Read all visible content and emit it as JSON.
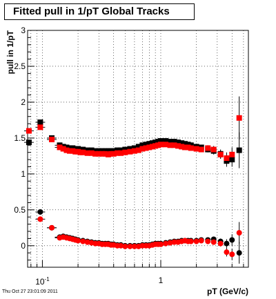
{
  "header": {
    "title": "Fitted pull in 1/pT  Global Tracks"
  },
  "footer": {
    "timestamp": "Thu Oct 27 23:01:09 2011"
  },
  "chart_data": {
    "type": "scatter",
    "title": "Fitted pull in 1/pT  Global Tracks",
    "xlabel": "pT (GeV/c)",
    "ylabel": "pull in 1/pT",
    "xscale": "log",
    "xlim": [
      0.075,
      5.5
    ],
    "ylim": [
      -0.3,
      3.0
    ],
    "x_tick_labels": [
      "10^-1",
      "1"
    ],
    "y_tick_labels": [
      "0",
      "0.5",
      "1",
      "1.5",
      "2",
      "2.5",
      "3"
    ],
    "grid": true,
    "colors": {
      "black_series": "#000000",
      "red_series": "#ff0000"
    },
    "series": [
      {
        "values": [
          [
            0.077,
            1.44
          ],
          [
            0.096,
            1.72
          ],
          [
            0.12,
            1.5
          ],
          [
            0.14,
            1.4
          ],
          [
            0.15,
            1.38
          ],
          [
            0.16,
            1.37
          ],
          [
            0.17,
            1.36
          ],
          [
            0.18,
            1.36
          ],
          [
            0.19,
            1.35
          ],
          [
            0.2,
            1.35
          ],
          [
            0.21,
            1.34
          ],
          [
            0.22,
            1.34
          ],
          [
            0.24,
            1.33
          ],
          [
            0.26,
            1.33
          ],
          [
            0.28,
            1.32
          ],
          [
            0.3,
            1.32
          ],
          [
            0.32,
            1.32
          ],
          [
            0.34,
            1.32
          ],
          [
            0.36,
            1.32
          ],
          [
            0.38,
            1.32
          ],
          [
            0.4,
            1.32
          ],
          [
            0.43,
            1.33
          ],
          [
            0.46,
            1.33
          ],
          [
            0.5,
            1.34
          ],
          [
            0.55,
            1.35
          ],
          [
            0.6,
            1.36
          ],
          [
            0.65,
            1.38
          ],
          [
            0.7,
            1.4
          ],
          [
            0.75,
            1.41
          ],
          [
            0.8,
            1.42
          ],
          [
            0.85,
            1.43
          ],
          [
            0.9,
            1.44
          ],
          [
            0.95,
            1.45
          ],
          [
            1.0,
            1.46
          ],
          [
            1.1,
            1.46
          ],
          [
            1.2,
            1.45
          ],
          [
            1.3,
            1.45
          ],
          [
            1.4,
            1.44
          ],
          [
            1.5,
            1.43
          ],
          [
            1.6,
            1.42
          ],
          [
            1.7,
            1.41
          ],
          [
            1.8,
            1.4
          ],
          [
            2.0,
            1.38
          ],
          [
            2.2,
            1.37
          ],
          [
            2.5,
            1.34
          ],
          [
            2.8,
            1.32
          ],
          [
            3.2,
            1.28
          ],
          [
            3.6,
            1.18
          ],
          [
            4.0,
            1.2
          ],
          [
            4.6,
            1.33
          ]
        ],
        "value_errors": [
          0.03,
          0.03,
          0.03,
          0.02,
          0.02,
          0.02,
          0.02,
          0.02,
          0.02,
          0.02,
          0.02,
          0.02,
          0.02,
          0.02,
          0.02,
          0.02,
          0.02,
          0.02,
          0.02,
          0.02,
          0.02,
          0.02,
          0.02,
          0.02,
          0.02,
          0.02,
          0.02,
          0.02,
          0.02,
          0.02,
          0.02,
          0.02,
          0.02,
          0.02,
          0.02,
          0.02,
          0.02,
          0.02,
          0.03,
          0.03,
          0.03,
          0.03,
          0.03,
          0.03,
          0.04,
          0.05,
          0.06,
          0.08,
          0.1,
          0.25
        ]
      },
      {
        "values": [
          [
            0.077,
            1.6
          ],
          [
            0.096,
            1.65
          ],
          [
            0.12,
            1.48
          ],
          [
            0.14,
            1.37
          ],
          [
            0.15,
            1.35
          ],
          [
            0.16,
            1.33
          ],
          [
            0.17,
            1.32
          ],
          [
            0.18,
            1.32
          ],
          [
            0.19,
            1.31
          ],
          [
            0.2,
            1.31
          ],
          [
            0.21,
            1.3
          ],
          [
            0.22,
            1.3
          ],
          [
            0.24,
            1.29
          ],
          [
            0.26,
            1.29
          ],
          [
            0.28,
            1.28
          ],
          [
            0.3,
            1.28
          ],
          [
            0.32,
            1.28
          ],
          [
            0.34,
            1.28
          ],
          [
            0.36,
            1.27
          ],
          [
            0.38,
            1.28
          ],
          [
            0.4,
            1.28
          ],
          [
            0.43,
            1.29
          ],
          [
            0.46,
            1.29
          ],
          [
            0.5,
            1.3
          ],
          [
            0.55,
            1.31
          ],
          [
            0.6,
            1.32
          ],
          [
            0.65,
            1.33
          ],
          [
            0.7,
            1.35
          ],
          [
            0.75,
            1.36
          ],
          [
            0.8,
            1.37
          ],
          [
            0.85,
            1.38
          ],
          [
            0.9,
            1.39
          ],
          [
            0.95,
            1.4
          ],
          [
            1.0,
            1.41
          ],
          [
            1.1,
            1.41
          ],
          [
            1.2,
            1.4
          ],
          [
            1.3,
            1.4
          ],
          [
            1.4,
            1.39
          ],
          [
            1.5,
            1.38
          ],
          [
            1.6,
            1.37
          ],
          [
            1.7,
            1.37
          ],
          [
            1.8,
            1.36
          ],
          [
            2.0,
            1.35
          ],
          [
            2.2,
            1.34
          ],
          [
            2.5,
            1.36
          ],
          [
            2.8,
            1.34
          ],
          [
            3.2,
            1.27
          ],
          [
            3.6,
            1.22
          ],
          [
            4.0,
            1.27
          ],
          [
            4.6,
            1.78
          ]
        ],
        "value_errors": [
          0.03,
          0.03,
          0.03,
          0.02,
          0.02,
          0.02,
          0.02,
          0.02,
          0.02,
          0.02,
          0.02,
          0.02,
          0.02,
          0.02,
          0.02,
          0.02,
          0.02,
          0.02,
          0.02,
          0.02,
          0.02,
          0.02,
          0.02,
          0.02,
          0.02,
          0.02,
          0.02,
          0.02,
          0.02,
          0.02,
          0.02,
          0.02,
          0.02,
          0.02,
          0.02,
          0.02,
          0.02,
          0.02,
          0.03,
          0.03,
          0.03,
          0.03,
          0.03,
          0.03,
          0.04,
          0.05,
          0.06,
          0.08,
          0.1,
          0.3
        ]
      },
      {
        "values": [
          [
            0.096,
            0.47
          ],
          [
            0.12,
            0.25
          ],
          [
            0.14,
            0.12
          ],
          [
            0.15,
            0.13
          ],
          [
            0.16,
            0.12
          ],
          [
            0.17,
            0.11
          ],
          [
            0.18,
            0.1
          ],
          [
            0.19,
            0.09
          ],
          [
            0.2,
            0.08
          ],
          [
            0.22,
            0.07
          ],
          [
            0.24,
            0.06
          ],
          [
            0.26,
            0.05
          ],
          [
            0.28,
            0.04
          ],
          [
            0.3,
            0.04
          ],
          [
            0.32,
            0.03
          ],
          [
            0.34,
            0.03
          ],
          [
            0.36,
            0.03
          ],
          [
            0.38,
            0.02
          ],
          [
            0.4,
            0.02
          ],
          [
            0.43,
            0.01
          ],
          [
            0.46,
            0.01
          ],
          [
            0.5,
            0.0
          ],
          [
            0.55,
            0.0
          ],
          [
            0.6,
            0.0
          ],
          [
            0.65,
            0.0
          ],
          [
            0.7,
            0.01
          ],
          [
            0.75,
            0.01
          ],
          [
            0.8,
            0.01
          ],
          [
            0.85,
            0.02
          ],
          [
            0.9,
            0.03
          ],
          [
            0.95,
            0.03
          ],
          [
            1.0,
            0.03
          ],
          [
            1.1,
            0.04
          ],
          [
            1.2,
            0.05
          ],
          [
            1.3,
            0.06
          ],
          [
            1.4,
            0.06
          ],
          [
            1.5,
            0.07
          ],
          [
            1.6,
            0.07
          ],
          [
            1.7,
            0.07
          ],
          [
            1.8,
            0.07
          ],
          [
            2.0,
            0.07
          ],
          [
            2.2,
            0.08
          ],
          [
            2.5,
            0.08
          ],
          [
            2.8,
            0.09
          ],
          [
            3.2,
            0.06
          ],
          [
            3.6,
            0.03
          ],
          [
            4.0,
            0.08
          ],
          [
            4.6,
            -0.1
          ]
        ],
        "value_errors": [
          0.03,
          0.03,
          0.02,
          0.02,
          0.02,
          0.02,
          0.02,
          0.02,
          0.02,
          0.02,
          0.02,
          0.02,
          0.02,
          0.02,
          0.02,
          0.02,
          0.02,
          0.02,
          0.02,
          0.02,
          0.02,
          0.02,
          0.02,
          0.02,
          0.02,
          0.02,
          0.02,
          0.02,
          0.02,
          0.02,
          0.02,
          0.02,
          0.02,
          0.02,
          0.02,
          0.02,
          0.02,
          0.02,
          0.02,
          0.02,
          0.02,
          0.02,
          0.03,
          0.03,
          0.04,
          0.06,
          0.08,
          0.15
        ]
      },
      {
        "values": [
          [
            0.096,
            0.37
          ],
          [
            0.12,
            0.25
          ],
          [
            0.14,
            0.11
          ],
          [
            0.15,
            0.12
          ],
          [
            0.16,
            0.11
          ],
          [
            0.17,
            0.1
          ],
          [
            0.18,
            0.09
          ],
          [
            0.19,
            0.08
          ],
          [
            0.2,
            0.07
          ],
          [
            0.22,
            0.06
          ],
          [
            0.24,
            0.05
          ],
          [
            0.26,
            0.04
          ],
          [
            0.28,
            0.03
          ],
          [
            0.3,
            0.03
          ],
          [
            0.32,
            0.02
          ],
          [
            0.34,
            0.02
          ],
          [
            0.36,
            0.02
          ],
          [
            0.38,
            0.01
          ],
          [
            0.4,
            0.01
          ],
          [
            0.43,
            0.0
          ],
          [
            0.46,
            0.0
          ],
          [
            0.5,
            -0.01
          ],
          [
            0.55,
            -0.01
          ],
          [
            0.6,
            -0.01
          ],
          [
            0.65,
            -0.01
          ],
          [
            0.7,
            0.0
          ],
          [
            0.75,
            0.0
          ],
          [
            0.8,
            0.0
          ],
          [
            0.85,
            0.01
          ],
          [
            0.9,
            0.02
          ],
          [
            0.95,
            0.02
          ],
          [
            1.0,
            0.02
          ],
          [
            1.1,
            0.03
          ],
          [
            1.2,
            0.04
          ],
          [
            1.3,
            0.05
          ],
          [
            1.4,
            0.05
          ],
          [
            1.5,
            0.06
          ],
          [
            1.6,
            0.07
          ],
          [
            1.7,
            0.06
          ],
          [
            1.8,
            0.06
          ],
          [
            2.0,
            0.06
          ],
          [
            2.2,
            0.07
          ],
          [
            2.5,
            0.06
          ],
          [
            2.8,
            0.05
          ],
          [
            3.2,
            0.03
          ],
          [
            3.6,
            -0.09
          ],
          [
            4.0,
            -0.12
          ],
          [
            4.6,
            0.18
          ]
        ],
        "value_errors": [
          0.03,
          0.03,
          0.02,
          0.02,
          0.02,
          0.02,
          0.02,
          0.02,
          0.02,
          0.02,
          0.02,
          0.02,
          0.02,
          0.02,
          0.02,
          0.02,
          0.02,
          0.02,
          0.02,
          0.02,
          0.02,
          0.02,
          0.02,
          0.02,
          0.02,
          0.02,
          0.02,
          0.02,
          0.02,
          0.02,
          0.02,
          0.02,
          0.02,
          0.02,
          0.02,
          0.02,
          0.02,
          0.02,
          0.02,
          0.02,
          0.02,
          0.02,
          0.03,
          0.03,
          0.04,
          0.06,
          0.08,
          0.15
        ]
      }
    ]
  }
}
